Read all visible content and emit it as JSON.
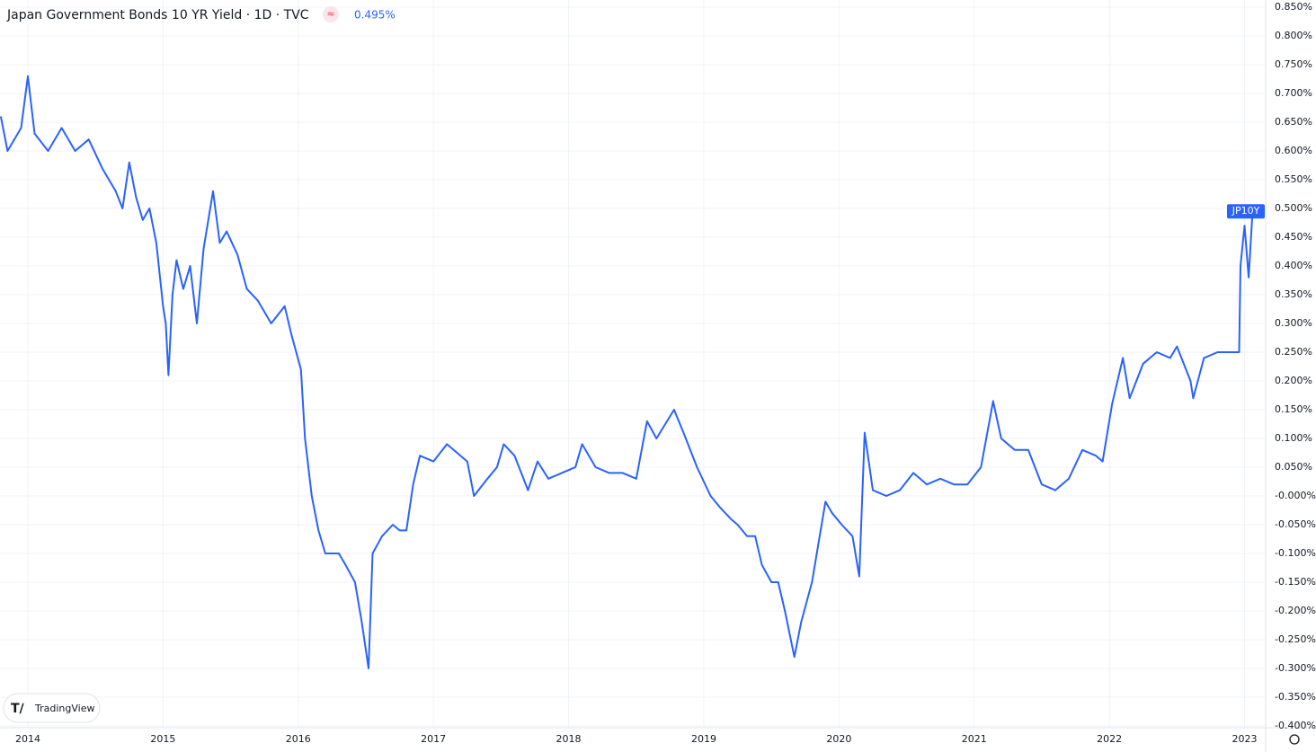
{
  "chart_data": {
    "type": "line",
    "title": "Japan Government Bonds 10 YR Yield · 1D · TVC",
    "brand": "TradingView",
    "x": [
      2013.8,
      2013.85,
      2013.95,
      2014.0,
      2014.05,
      2014.15,
      2014.25,
      2014.35,
      2014.45,
      2014.55,
      2014.65,
      2014.7,
      2014.75,
      2014.8,
      2014.85,
      2014.9,
      2014.95,
      2015.0,
      2015.02,
      2015.04,
      2015.07,
      2015.1,
      2015.15,
      2015.2,
      2015.25,
      2015.3,
      2015.37,
      2015.42,
      2015.47,
      2015.55,
      2015.62,
      2015.7,
      2015.8,
      2015.9,
      2015.95,
      2016.02,
      2016.05,
      2016.1,
      2016.15,
      2016.2,
      2016.3,
      2016.35,
      2016.42,
      2016.47,
      2016.52,
      2016.55,
      2016.62,
      2016.7,
      2016.75,
      2016.8,
      2016.85,
      2016.9,
      2017.0,
      2017.1,
      2017.2,
      2017.25,
      2017.3,
      2017.4,
      2017.47,
      2017.52,
      2017.6,
      2017.7,
      2017.77,
      2017.85,
      2017.95,
      2018.05,
      2018.1,
      2018.2,
      2018.3,
      2018.4,
      2018.5,
      2018.58,
      2018.65,
      2018.78,
      2018.85,
      2018.95,
      2019.05,
      2019.12,
      2019.2,
      2019.25,
      2019.32,
      2019.38,
      2019.43,
      2019.5,
      2019.55,
      2019.6,
      2019.67,
      2019.72,
      2019.8,
      2019.85,
      2019.9,
      2019.95,
      2020.02,
      2020.1,
      2020.15,
      2020.19,
      2020.25,
      2020.35,
      2020.45,
      2020.55,
      2020.65,
      2020.75,
      2020.85,
      2020.95,
      2021.05,
      2021.14,
      2021.2,
      2021.3,
      2021.4,
      2021.5,
      2021.6,
      2021.7,
      2021.8,
      2021.9,
      2021.95,
      2022.02,
      2022.1,
      2022.15,
      2022.25,
      2022.35,
      2022.45,
      2022.5,
      2022.6,
      2022.62,
      2022.7,
      2022.8,
      2022.9,
      2022.96,
      2022.97,
      2023.0,
      2023.03,
      2023.06,
      2023.08
    ],
    "series": [
      {
        "name": "JP10Y",
        "color": "#2962ff",
        "last_label": "0.495%",
        "values": [
          0.66,
          0.6,
          0.64,
          0.73,
          0.63,
          0.6,
          0.64,
          0.6,
          0.62,
          0.57,
          0.53,
          0.5,
          0.58,
          0.52,
          0.48,
          0.5,
          0.44,
          0.33,
          0.3,
          0.21,
          0.35,
          0.41,
          0.36,
          0.4,
          0.3,
          0.43,
          0.53,
          0.44,
          0.46,
          0.42,
          0.36,
          0.34,
          0.3,
          0.33,
          0.28,
          0.22,
          0.1,
          0.0,
          -0.06,
          -0.1,
          -0.1,
          -0.12,
          -0.15,
          -0.22,
          -0.3,
          -0.1,
          -0.07,
          -0.05,
          -0.06,
          -0.06,
          0.02,
          0.07,
          0.06,
          0.09,
          0.07,
          0.06,
          0.0,
          0.03,
          0.05,
          0.09,
          0.07,
          0.01,
          0.06,
          0.03,
          0.04,
          0.05,
          0.09,
          0.05,
          0.04,
          0.04,
          0.03,
          0.13,
          0.1,
          0.15,
          0.11,
          0.05,
          0.0,
          -0.02,
          -0.04,
          -0.05,
          -0.07,
          -0.07,
          -0.12,
          -0.15,
          -0.15,
          -0.2,
          -0.28,
          -0.22,
          -0.15,
          -0.08,
          -0.01,
          -0.03,
          -0.05,
          -0.07,
          -0.14,
          0.11,
          0.01,
          0.0,
          0.01,
          0.04,
          0.02,
          0.03,
          0.02,
          0.02,
          0.05,
          0.165,
          0.1,
          0.08,
          0.08,
          0.02,
          0.01,
          0.03,
          0.08,
          0.07,
          0.06,
          0.16,
          0.24,
          0.17,
          0.23,
          0.25,
          0.24,
          0.26,
          0.2,
          0.17,
          0.24,
          0.25,
          0.25,
          0.25,
          0.4,
          0.47,
          0.38,
          0.5,
          0.495
        ]
      }
    ],
    "xlim": [
      2013.794,
      2023.156
    ],
    "xticks": [
      2014,
      2015,
      2016,
      2017,
      2018,
      2019,
      2020,
      2021,
      2022,
      2023
    ],
    "ylim": [
      -0.4,
      0.85
    ],
    "yticks": [
      {
        "value": 0.85,
        "label": "0.850%"
      },
      {
        "value": 0.8,
        "label": "0.800%"
      },
      {
        "value": 0.75,
        "label": "0.750%"
      },
      {
        "value": 0.7,
        "label": "0.700%"
      },
      {
        "value": 0.65,
        "label": "0.650%"
      },
      {
        "value": 0.6,
        "label": "0.600%"
      },
      {
        "value": 0.55,
        "label": "0.550%"
      },
      {
        "value": 0.5,
        "label": "0.500%"
      },
      {
        "value": 0.45,
        "label": "0.450%"
      },
      {
        "value": 0.4,
        "label": "0.400%"
      },
      {
        "value": 0.35,
        "label": "0.350%"
      },
      {
        "value": 0.3,
        "label": "0.300%"
      },
      {
        "value": 0.25,
        "label": "0.250%"
      },
      {
        "value": 0.2,
        "label": "0.200%"
      },
      {
        "value": 0.15,
        "label": "0.150%"
      },
      {
        "value": 0.1,
        "label": "0.100%"
      },
      {
        "value": 0.05,
        "label": "0.050%"
      },
      {
        "value": 0,
        "label": "-0.000%"
      },
      {
        "value": -0.05,
        "label": "-0.050%"
      },
      {
        "value": -0.1,
        "label": "-0.100%"
      },
      {
        "value": -0.15,
        "label": "-0.150%"
      },
      {
        "value": -0.2,
        "label": "-0.200%"
      },
      {
        "value": -0.25,
        "label": "-0.250%"
      },
      {
        "value": -0.3,
        "label": "-0.300%"
      },
      {
        "value": -0.35,
        "label": "-0.350%"
      },
      {
        "value": -0.4,
        "label": "-0.400%"
      }
    ],
    "grid": true
  }
}
